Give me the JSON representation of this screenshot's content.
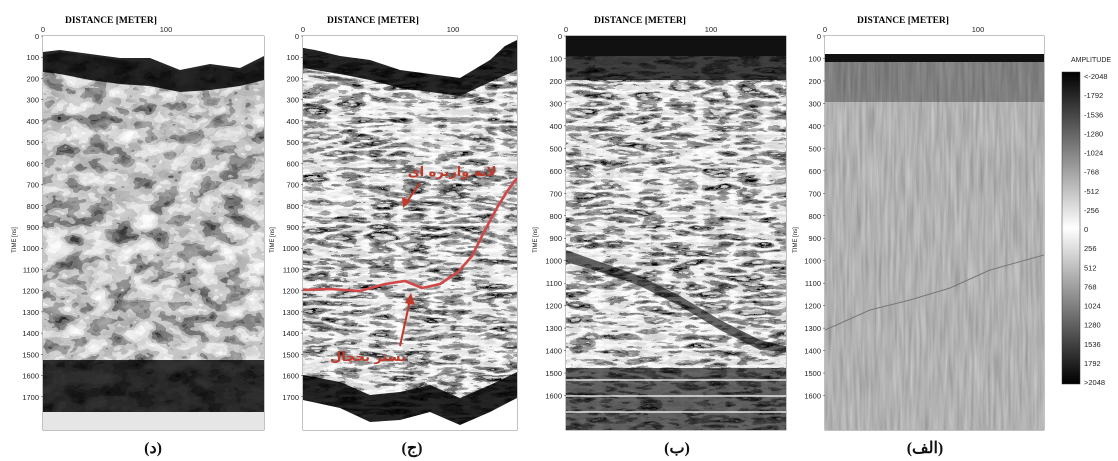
{
  "figure": {
    "colors": {
      "annotation": "#c0392b",
      "interpretation_line": "#d04848"
    },
    "panels": [
      {
        "label": "(د)",
        "x_axis_title": "DISTANCE [METER]",
        "x_ticks": [
          "0",
          "100"
        ],
        "y_axis_title": "TIME [ns]",
        "y_ticks": [
          "0",
          "100",
          "200",
          "300",
          "400",
          "500",
          "600",
          "700",
          "800",
          "900",
          "1000",
          "1100",
          "1200",
          "1300",
          "1400",
          "1500",
          "1600",
          "1700"
        ],
        "texture": "envelope"
      },
      {
        "label": "(ج)",
        "x_axis_title": "DISTANCE [METER]",
        "x_ticks": [
          "0",
          "100"
        ],
        "y_axis_title": "TIME [ns]",
        "y_ticks": [
          "0",
          "100",
          "200",
          "300",
          "400",
          "500",
          "600",
          "700",
          "800",
          "900",
          "1000",
          "1100",
          "1200",
          "1300",
          "1400",
          "1500",
          "1600",
          "1700"
        ],
        "texture": "banded",
        "annotations": [
          {
            "text": "لايه واريزه اى"
          },
          {
            "text": "بستر يخچال"
          }
        ]
      },
      {
        "label": "(ب)",
        "x_axis_title": "DISTANCE [METER]",
        "x_ticks": [
          "0",
          "100"
        ],
        "y_axis_title": "TIME [ns]",
        "y_ticks": [
          "0",
          "100",
          "200",
          "300",
          "400",
          "500",
          "600",
          "700",
          "800",
          "900",
          "1000",
          "1100",
          "1200",
          "1300",
          "1400",
          "1500",
          "1600"
        ],
        "texture": "banded"
      },
      {
        "label": "(الف)",
        "x_axis_title": "DISTANCE [METER]",
        "x_ticks": [
          "0",
          "100"
        ],
        "y_axis_title": "TIME [ns]",
        "y_ticks": [
          "0",
          "100",
          "200",
          "300",
          "400",
          "500",
          "600",
          "700",
          "800",
          "900",
          "1000",
          "1100",
          "1200",
          "1300",
          "1400",
          "1500",
          "1600"
        ],
        "texture": "raw"
      }
    ],
    "colorbar": {
      "title": "AMPLITUDE",
      "ticks": [
        "<-2048",
        "-1792",
        "-1536",
        "-1280",
        "-1024",
        "-768",
        "-512",
        "-256",
        "0",
        "256",
        "512",
        "768",
        "1024",
        "1280",
        "1536",
        "1792",
        ">2048"
      ]
    }
  }
}
